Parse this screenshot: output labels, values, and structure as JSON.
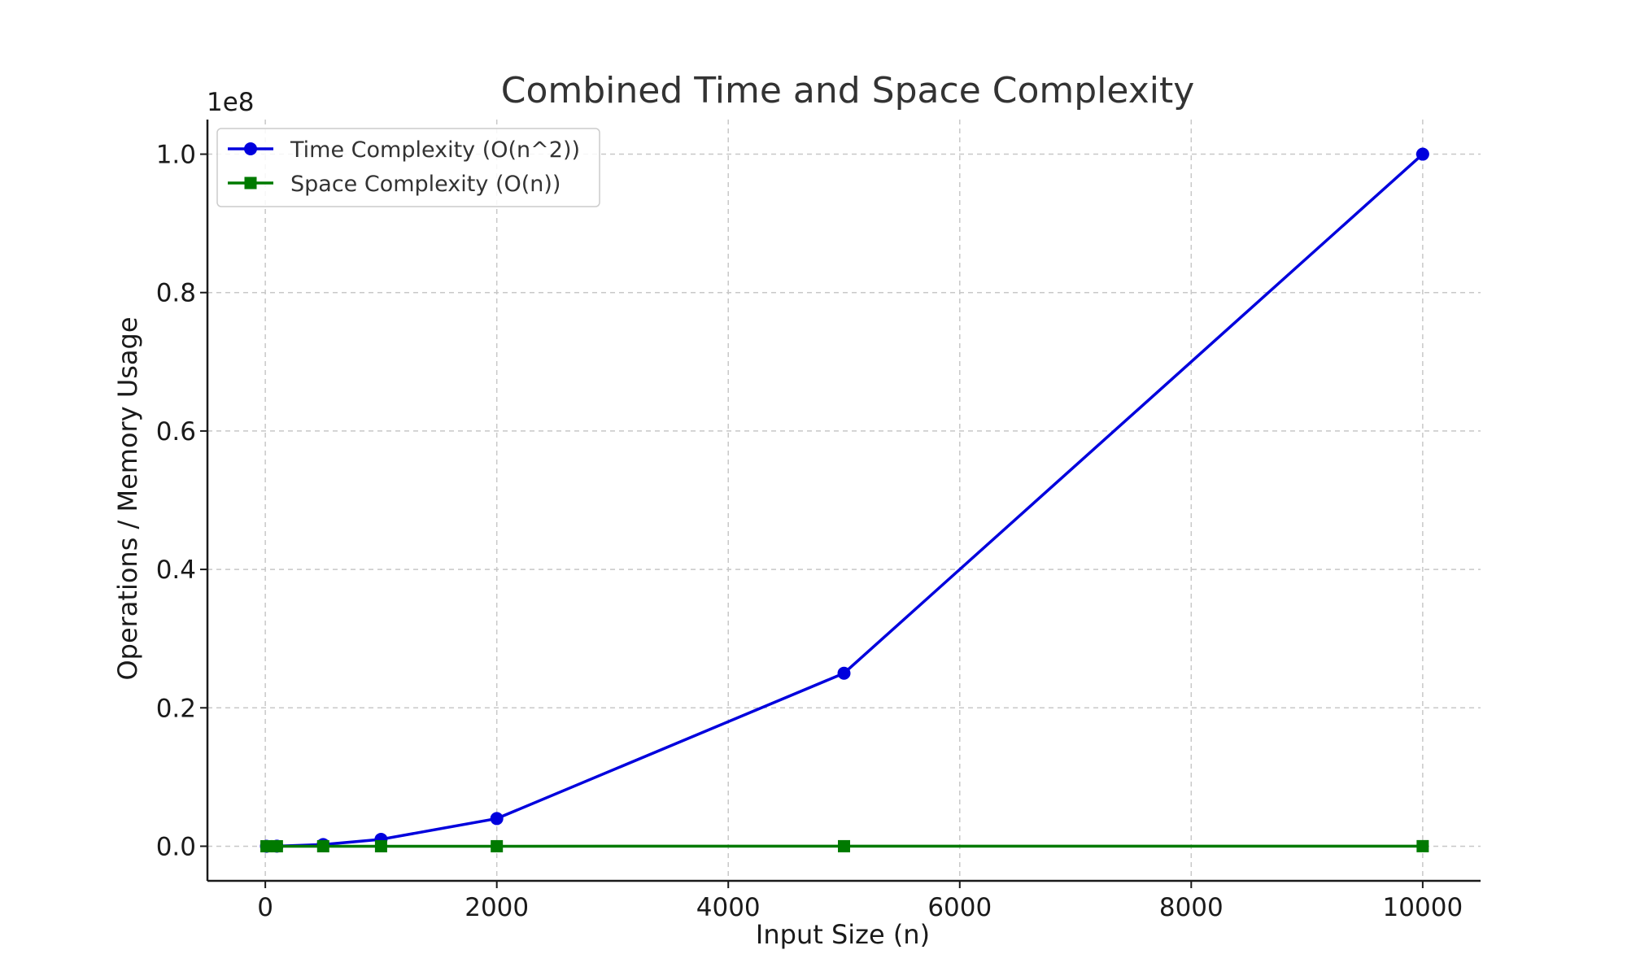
{
  "chart_data": {
    "type": "line",
    "title": "Combined Time and Space Complexity",
    "xlabel": "Input Size (n)",
    "ylabel": "Operations / Memory Usage",
    "y_offset_label": "1e8",
    "xlim": [
      -500,
      10500
    ],
    "ylim": [
      -5000000,
      105000000
    ],
    "x_ticks": [
      0,
      2000,
      4000,
      6000,
      8000,
      10000
    ],
    "x_tick_labels": [
      "0",
      "2000",
      "4000",
      "6000",
      "8000",
      "10000"
    ],
    "y_ticks": [
      0,
      20000000,
      40000000,
      60000000,
      80000000,
      100000000
    ],
    "y_tick_labels": [
      "0.0",
      "0.2",
      "0.4",
      "0.6",
      "0.8",
      "1.0"
    ],
    "grid": true,
    "legend_position": "top-left",
    "x": [
      10,
      100,
      500,
      1000,
      2000,
      5000,
      10000
    ],
    "series": [
      {
        "name": "Time Complexity (O(n^2))",
        "color": "#0000dd",
        "marker": "circle",
        "values": [
          100,
          10000,
          250000,
          1000000,
          4000000,
          25000000,
          100000000
        ]
      },
      {
        "name": "Space Complexity (O(n))",
        "color": "#007a00",
        "marker": "square",
        "values": [
          10,
          100,
          500,
          1000,
          2000,
          5000,
          10000
        ]
      }
    ]
  }
}
